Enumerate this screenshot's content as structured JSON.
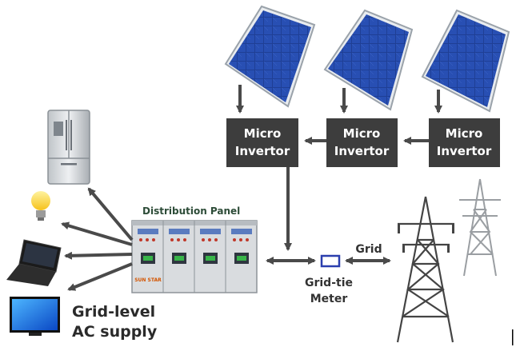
{
  "components": {
    "micro_inverter_line1": "Micro",
    "micro_inverter_line2": "Invertor",
    "distribution_panel": "Distribution Panel",
    "panel_brand": "SUN STAR",
    "grid": "Grid",
    "meter_line1": "Grid-tie",
    "meter_line2": "Meter",
    "supply_line1": "Grid-level",
    "supply_line2": "AC supply"
  },
  "icons": {
    "solar_panel": "solar-panel-icon",
    "inverter": "micro-inverter-box",
    "fridge": "refrigerator-icon",
    "bulb": "light-bulb-icon",
    "laptop": "laptop-icon",
    "tv": "television-icon",
    "tower": "transmission-tower-icon",
    "meter": "grid-tie-meter-icon"
  },
  "colors": {
    "inverter_fill": "#3d3d3d",
    "arrow": "#4a4a4a",
    "panel_cell": "#1f3f95",
    "meter_border": "#2b3fae",
    "bulb_glow": "#f6c21b"
  }
}
